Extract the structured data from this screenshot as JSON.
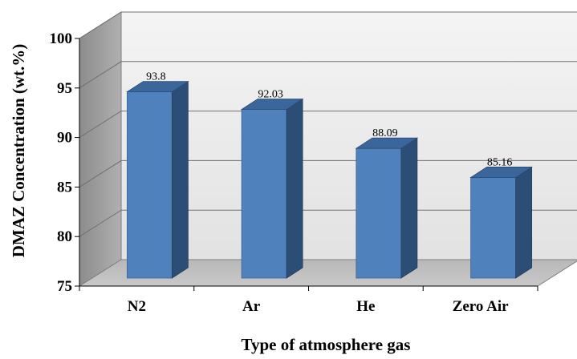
{
  "chart_data": {
    "type": "bar",
    "categories": [
      "N2",
      "Ar",
      "He",
      "Zero Air"
    ],
    "values": [
      93.8,
      92.03,
      88.09,
      85.16
    ],
    "data_labels": [
      "93.8",
      "92.03",
      "88.09",
      "85.16"
    ],
    "title": "",
    "xlabel": "Type of atmosphere gas",
    "ylabel": "DMAZ Concentration (wt.%)",
    "ylim": [
      75,
      100
    ],
    "yticks": [
      "75",
      "80",
      "85",
      "90",
      "95",
      "100"
    ],
    "grid": true,
    "legend": false,
    "style": "3d-column"
  },
  "colors": {
    "bar_front": "#4f81bd",
    "bar_side": "#2c4d75",
    "bar_top": "#3b669b",
    "back_wall": "#e8e8e8",
    "side_wall": "#a6a6a6",
    "floor": "#bfbfbf"
  }
}
